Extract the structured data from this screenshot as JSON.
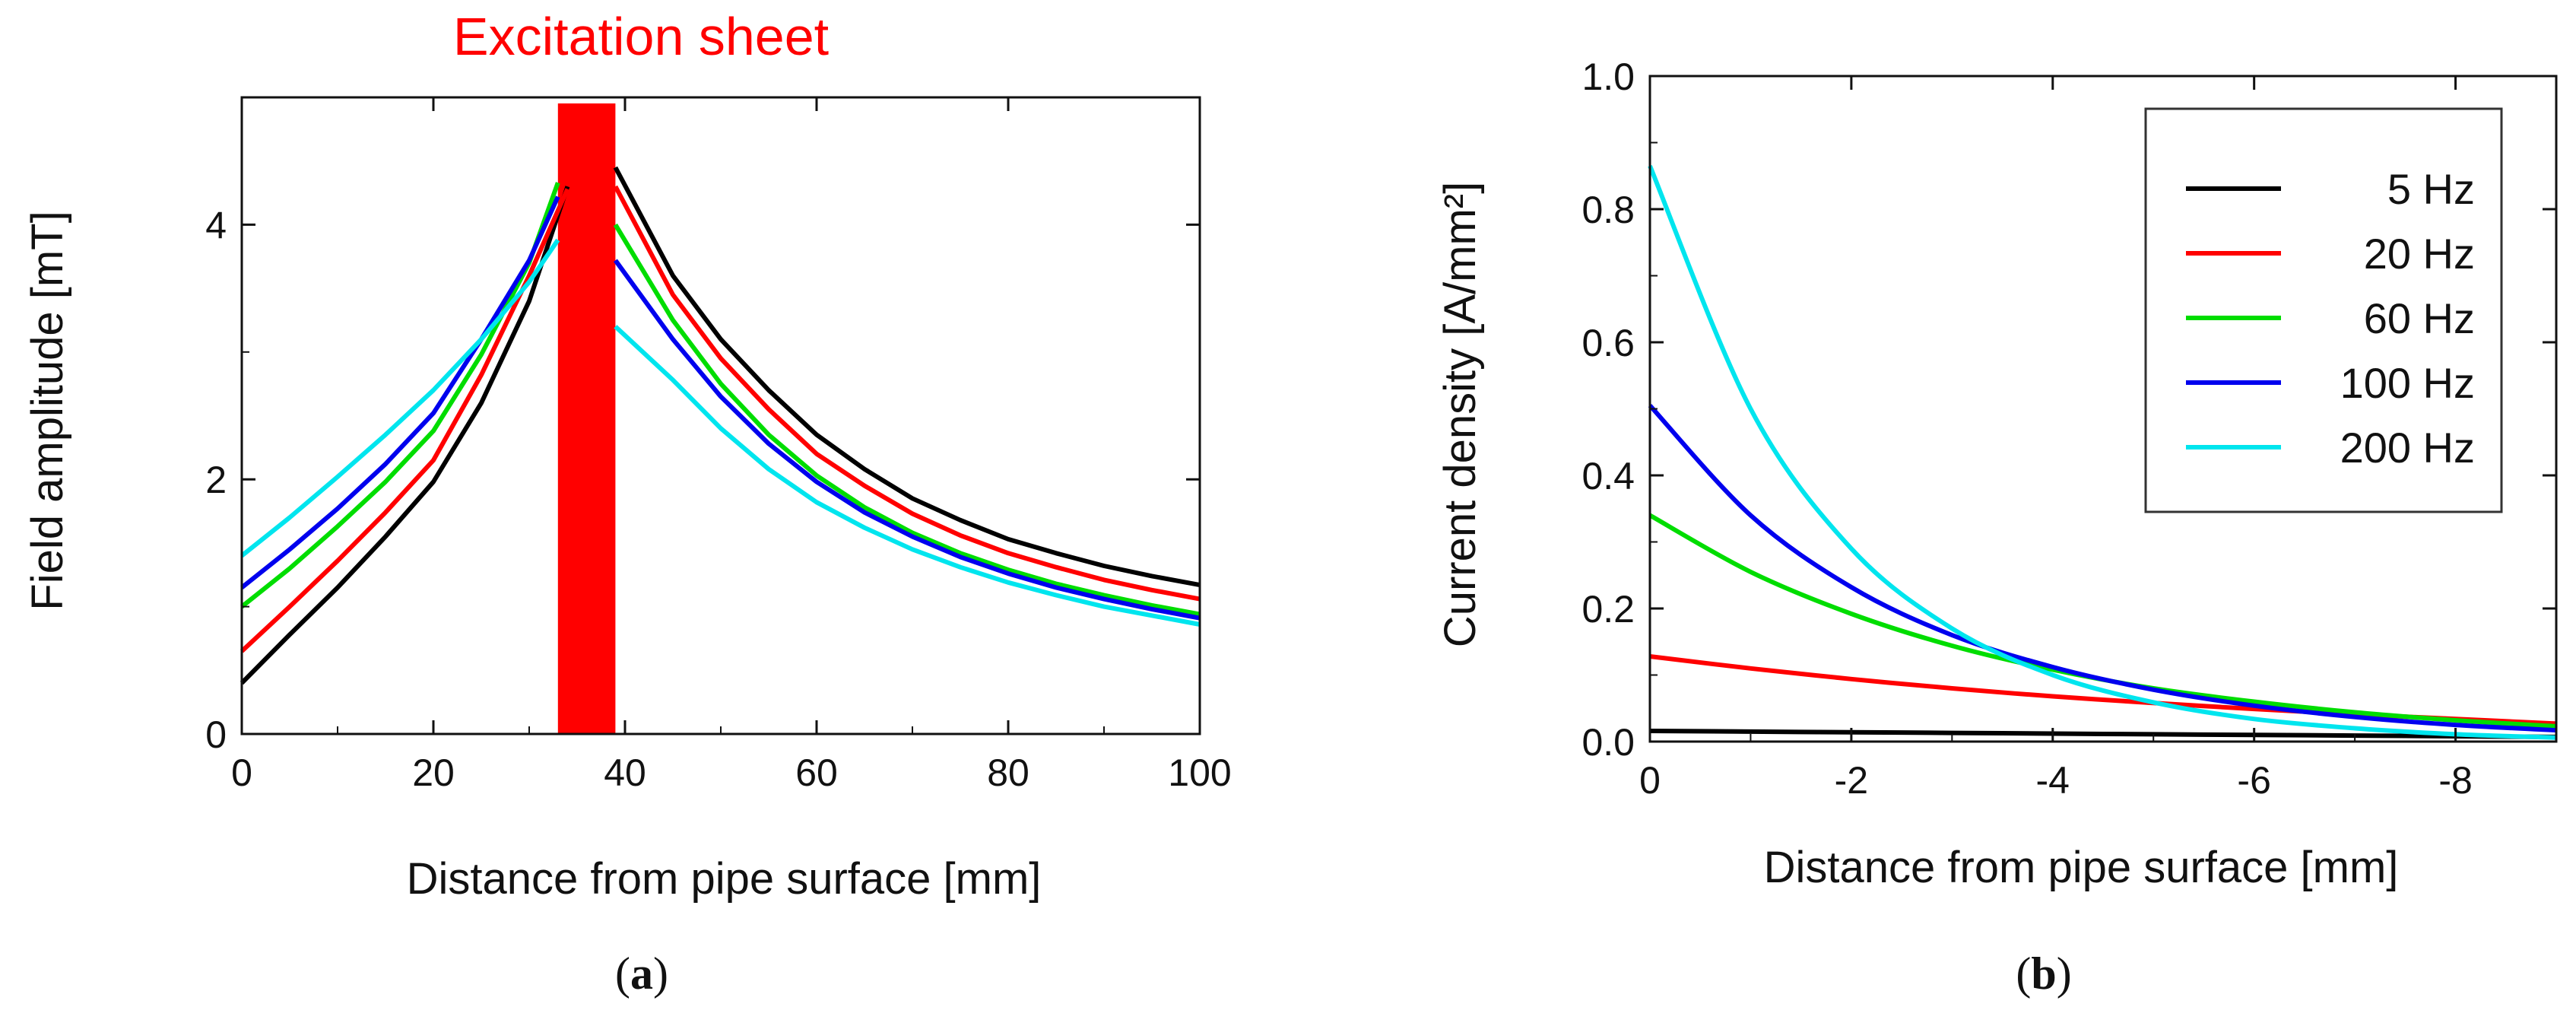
{
  "chart_data": [
    {
      "type": "line",
      "title": "Excitation sheet",
      "xlabel": "Distance from pipe surface [mm]",
      "ylabel": "Field amplitude [mT]",
      "xlim": [
        0,
        100
      ],
      "ylim": [
        0,
        5
      ],
      "xticks": [
        "0",
        "20",
        "40",
        "60",
        "80",
        "100"
      ],
      "yticks": [
        "0",
        "2",
        "4"
      ],
      "grid": false,
      "excitation_sheet": {
        "x_start": 33,
        "x_end": 39,
        "color": "#ff0000"
      },
      "series": [
        {
          "key": "5",
          "color": "#000000",
          "left": [
            [
              0,
              0.4
            ],
            [
              5,
              0.78
            ],
            [
              10,
              1.15
            ],
            [
              15,
              1.55
            ],
            [
              20,
              1.98
            ],
            [
              25,
              2.6
            ],
            [
              30,
              3.4
            ],
            [
              34,
              4.3
            ]
          ],
          "right": [
            [
              39,
              4.45
            ],
            [
              45,
              3.6
            ],
            [
              50,
              3.1
            ],
            [
              55,
              2.7
            ],
            [
              60,
              2.35
            ],
            [
              65,
              2.08
            ],
            [
              70,
              1.85
            ],
            [
              75,
              1.68
            ],
            [
              80,
              1.53
            ],
            [
              85,
              1.42
            ],
            [
              90,
              1.32
            ],
            [
              95,
              1.24
            ],
            [
              100,
              1.17
            ]
          ]
        },
        {
          "key": "20",
          "color": "#ff0000",
          "left": [
            [
              0,
              0.65
            ],
            [
              5,
              1.0
            ],
            [
              10,
              1.36
            ],
            [
              15,
              1.74
            ],
            [
              20,
              2.15
            ],
            [
              25,
              2.82
            ],
            [
              30,
              3.6
            ],
            [
              34,
              4.28
            ]
          ],
          "right": [
            [
              39,
              4.3
            ],
            [
              45,
              3.45
            ],
            [
              50,
              2.95
            ],
            [
              55,
              2.55
            ],
            [
              60,
              2.2
            ],
            [
              65,
              1.95
            ],
            [
              70,
              1.73
            ],
            [
              75,
              1.56
            ],
            [
              80,
              1.42
            ],
            [
              85,
              1.31
            ],
            [
              90,
              1.21
            ],
            [
              95,
              1.13
            ],
            [
              100,
              1.06
            ]
          ]
        },
        {
          "key": "60",
          "color": "#00dd00",
          "left": [
            [
              0,
              1.0
            ],
            [
              5,
              1.3
            ],
            [
              10,
              1.63
            ],
            [
              15,
              1.98
            ],
            [
              20,
              2.38
            ],
            [
              25,
              2.98
            ],
            [
              30,
              3.7
            ],
            [
              33,
              4.33
            ]
          ],
          "right": [
            [
              39,
              4.0
            ],
            [
              45,
              3.25
            ],
            [
              50,
              2.75
            ],
            [
              55,
              2.35
            ],
            [
              60,
              2.03
            ],
            [
              65,
              1.78
            ],
            [
              70,
              1.58
            ],
            [
              75,
              1.42
            ],
            [
              80,
              1.29
            ],
            [
              85,
              1.18
            ],
            [
              90,
              1.09
            ],
            [
              95,
              1.01
            ],
            [
              100,
              0.94
            ]
          ]
        },
        {
          "key": "100",
          "color": "#0000ee",
          "left": [
            [
              0,
              1.15
            ],
            [
              5,
              1.45
            ],
            [
              10,
              1.77
            ],
            [
              15,
              2.12
            ],
            [
              20,
              2.52
            ],
            [
              25,
              3.1
            ],
            [
              30,
              3.72
            ],
            [
              33,
              4.22
            ]
          ],
          "right": [
            [
              39,
              3.72
            ],
            [
              45,
              3.1
            ],
            [
              50,
              2.65
            ],
            [
              55,
              2.28
            ],
            [
              60,
              1.98
            ],
            [
              65,
              1.74
            ],
            [
              70,
              1.55
            ],
            [
              75,
              1.39
            ],
            [
              80,
              1.26
            ],
            [
              85,
              1.15
            ],
            [
              90,
              1.06
            ],
            [
              95,
              0.98
            ],
            [
              100,
              0.91
            ]
          ]
        },
        {
          "key": "200",
          "color": "#00e5ee",
          "left": [
            [
              0,
              1.4
            ],
            [
              5,
              1.7
            ],
            [
              10,
              2.02
            ],
            [
              15,
              2.35
            ],
            [
              20,
              2.7
            ],
            [
              25,
              3.1
            ],
            [
              30,
              3.55
            ],
            [
              33,
              3.88
            ]
          ],
          "right": [
            [
              39,
              3.2
            ],
            [
              45,
              2.78
            ],
            [
              50,
              2.4
            ],
            [
              55,
              2.08
            ],
            [
              60,
              1.82
            ],
            [
              65,
              1.62
            ],
            [
              70,
              1.45
            ],
            [
              75,
              1.31
            ],
            [
              80,
              1.19
            ],
            [
              85,
              1.09
            ],
            [
              90,
              1.0
            ],
            [
              95,
              0.93
            ],
            [
              100,
              0.86
            ]
          ]
        }
      ]
    },
    {
      "type": "line",
      "xlabel": "Distance from pipe surface [mm]",
      "ylabel": "Current density [A/mm²]",
      "xlim": [
        0,
        -9
      ],
      "ylim": [
        0,
        1.0
      ],
      "xticks": [
        "0",
        "-2",
        "-4",
        "-6",
        "-8"
      ],
      "yticks": [
        "0.0",
        "0.2",
        "0.4",
        "0.6",
        "0.8",
        "1.0"
      ],
      "grid": false,
      "legend_position": "top-right",
      "series": [
        {
          "name": "5 Hz",
          "color": "#000000",
          "points": [
            [
              0,
              0.016
            ],
            [
              -1,
              0.015
            ],
            [
              -2,
              0.014
            ],
            [
              -3,
              0.013
            ],
            [
              -4,
              0.012
            ],
            [
              -5,
              0.011
            ],
            [
              -6,
              0.01
            ],
            [
              -7,
              0.009
            ],
            [
              -8,
              0.008
            ],
            [
              -9,
              0.007
            ]
          ]
        },
        {
          "name": "20 Hz",
          "color": "#ff0000",
          "points": [
            [
              0,
              0.128
            ],
            [
              -1,
              0.11
            ],
            [
              -2,
              0.094
            ],
            [
              -3,
              0.08
            ],
            [
              -4,
              0.068
            ],
            [
              -5,
              0.058
            ],
            [
              -6,
              0.049
            ],
            [
              -7,
              0.041
            ],
            [
              -8,
              0.034
            ],
            [
              -9,
              0.027
            ]
          ]
        },
        {
          "name": "60 Hz",
          "color": "#00dd00",
          "points": [
            [
              0,
              0.34
            ],
            [
              -1,
              0.255
            ],
            [
              -2,
              0.192
            ],
            [
              -3,
              0.144
            ],
            [
              -4,
              0.108
            ],
            [
              -5,
              0.08
            ],
            [
              -6,
              0.06
            ],
            [
              -7,
              0.044
            ],
            [
              -8,
              0.032
            ],
            [
              -9,
              0.023
            ]
          ]
        },
        {
          "name": "100 Hz",
          "color": "#0000ee",
          "points": [
            [
              0,
              0.505
            ],
            [
              -1,
              0.34
            ],
            [
              -2,
              0.232
            ],
            [
              -3,
              0.16
            ],
            [
              -4,
              0.112
            ],
            [
              -5,
              0.078
            ],
            [
              -6,
              0.054
            ],
            [
              -7,
              0.037
            ],
            [
              -8,
              0.025
            ],
            [
              -9,
              0.017
            ]
          ]
        },
        {
          "name": "200 Hz",
          "color": "#00e5ee",
          "points": [
            [
              0,
              0.865
            ],
            [
              -1,
              0.5
            ],
            [
              -2,
              0.29
            ],
            [
              -3,
              0.17
            ],
            [
              -4,
              0.1
            ],
            [
              -5,
              0.059
            ],
            [
              -6,
              0.034
            ],
            [
              -7,
              0.02
            ],
            [
              -8,
              0.011
            ],
            [
              -9,
              0.006
            ]
          ]
        }
      ]
    }
  ],
  "captions": {
    "a": "a",
    "b": "b"
  }
}
